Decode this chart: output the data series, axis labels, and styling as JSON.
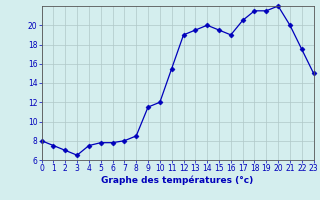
{
  "hours": [
    0,
    1,
    2,
    3,
    4,
    5,
    6,
    7,
    8,
    9,
    10,
    11,
    12,
    13,
    14,
    15,
    16,
    17,
    18,
    19,
    20,
    21,
    22,
    23
  ],
  "temperatures": [
    8.0,
    7.5,
    7.0,
    6.5,
    7.5,
    7.8,
    7.8,
    8.0,
    8.5,
    11.5,
    12.0,
    15.5,
    19.0,
    19.5,
    20.0,
    19.5,
    19.0,
    20.5,
    21.5,
    21.5,
    22.0,
    20.0,
    17.5,
    15.0
  ],
  "line_color": "#0000bb",
  "marker": "D",
  "marker_size": 2.5,
  "bg_color": "#d4eeee",
  "grid_color": "#b0c8c8",
  "xlabel": "Graphe des températures (°c)",
  "xlabel_color": "#0000bb",
  "tick_color": "#0000bb",
  "ylim": [
    6,
    22
  ],
  "yticks": [
    6,
    8,
    10,
    12,
    14,
    16,
    18,
    20
  ],
  "xlim": [
    0,
    23
  ],
  "xticks": [
    0,
    1,
    2,
    3,
    4,
    5,
    6,
    7,
    8,
    9,
    10,
    11,
    12,
    13,
    14,
    15,
    16,
    17,
    18,
    19,
    20,
    21,
    22,
    23
  ],
  "spine_color": "#555555",
  "tick_fontsize": 5.5,
  "xlabel_fontsize": 6.5
}
